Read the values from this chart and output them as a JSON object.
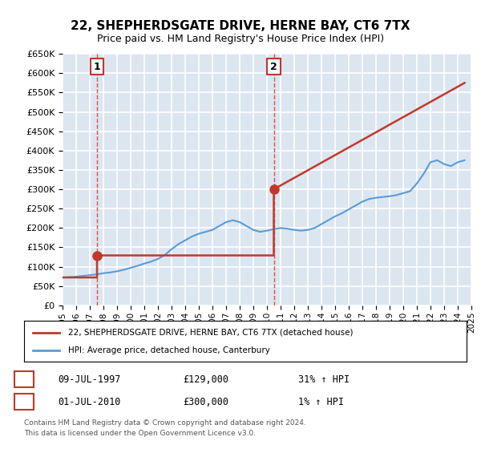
{
  "title": "22, SHEPHERDSGATE DRIVE, HERNE BAY, CT6 7TX",
  "subtitle": "Price paid vs. HM Land Registry's House Price Index (HPI)",
  "legend_line1": "22, SHEPHERDSGATE DRIVE, HERNE BAY, CT6 7TX (detached house)",
  "legend_line2": "HPI: Average price, detached house, Canterbury",
  "footnote1": "Contains HM Land Registry data © Crown copyright and database right 2024.",
  "footnote2": "This data is licensed under the Open Government Licence v3.0.",
  "transaction1_label": "1",
  "transaction1_date": "09-JUL-1997",
  "transaction1_price": "£129,000",
  "transaction1_hpi": "31% ↑ HPI",
  "transaction1_year": 1997.53,
  "transaction1_value": 129000,
  "transaction2_label": "2",
  "transaction2_date": "01-JUL-2010",
  "transaction2_price": "£300,000",
  "transaction2_hpi": "1% ↑ HPI",
  "transaction2_year": 2010.5,
  "transaction2_value": 300000,
  "ylim_min": 0,
  "ylim_max": 650000,
  "ytick_step": 50000,
  "xmin": 1995,
  "xmax": 2025,
  "bg_color": "#dce6f1",
  "plot_bg_color": "#dce6f1",
  "red_line_color": "#c0392b",
  "blue_line_color": "#5b9bd5",
  "grid_color": "#ffffff",
  "marker_color": "#c0392b",
  "dashed_color": "#e74c3c",
  "hpi_data_years": [
    1995,
    1995.5,
    1996,
    1996.5,
    1997,
    1997.5,
    1998,
    1998.5,
    1999,
    1999.5,
    2000,
    2000.5,
    2001,
    2001.5,
    2002,
    2002.5,
    2003,
    2003.5,
    2004,
    2004.5,
    2005,
    2005.5,
    2006,
    2006.5,
    2007,
    2007.5,
    2008,
    2008.5,
    2009,
    2009.5,
    2010,
    2010.5,
    2011,
    2011.5,
    2012,
    2012.5,
    2013,
    2013.5,
    2014,
    2014.5,
    2015,
    2015.5,
    2016,
    2016.5,
    2017,
    2017.5,
    2018,
    2018.5,
    2019,
    2019.5,
    2020,
    2020.5,
    2021,
    2021.5,
    2022,
    2022.5,
    2023,
    2023.5,
    2024,
    2024.5
  ],
  "hpi_data_values": [
    72000,
    73000,
    74000,
    76000,
    78000,
    80000,
    83000,
    85000,
    88000,
    92000,
    97000,
    102000,
    108000,
    113000,
    120000,
    130000,
    145000,
    158000,
    168000,
    178000,
    185000,
    190000,
    195000,
    205000,
    215000,
    220000,
    215000,
    205000,
    195000,
    190000,
    193000,
    197000,
    200000,
    198000,
    195000,
    193000,
    195000,
    200000,
    210000,
    220000,
    230000,
    238000,
    248000,
    258000,
    268000,
    275000,
    278000,
    280000,
    282000,
    285000,
    290000,
    295000,
    315000,
    340000,
    370000,
    375000,
    365000,
    360000,
    370000,
    375000
  ],
  "property_data_years": [
    1995,
    1997.53,
    1997.53,
    2010.5,
    2010.5,
    2024.5
  ],
  "property_data_values": [
    72000,
    72000,
    129000,
    129000,
    300000,
    575000
  ],
  "xtick_years": [
    1995,
    1996,
    1997,
    1998,
    1999,
    2000,
    2001,
    2002,
    2003,
    2004,
    2005,
    2006,
    2007,
    2008,
    2009,
    2010,
    2011,
    2012,
    2013,
    2014,
    2015,
    2016,
    2017,
    2018,
    2019,
    2020,
    2021,
    2022,
    2023,
    2024,
    2025
  ]
}
